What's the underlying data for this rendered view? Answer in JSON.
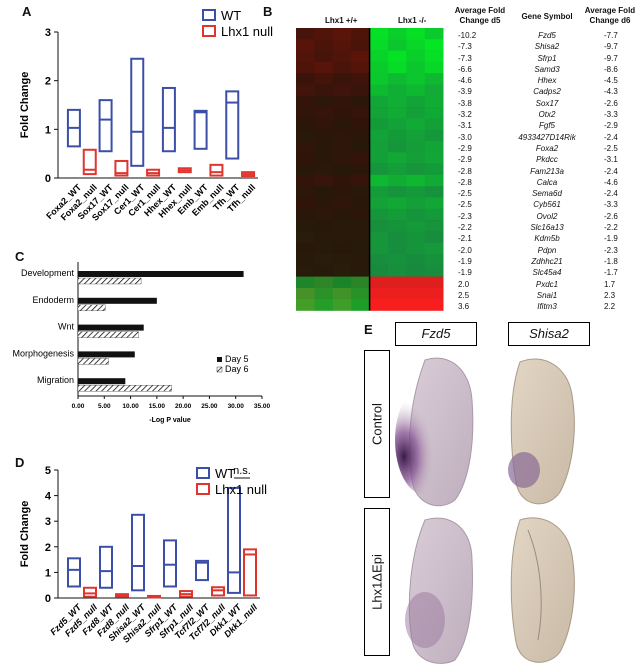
{
  "panels": {
    "a": "A",
    "b": "B",
    "c": "C",
    "d": "D",
    "e": "E"
  },
  "colors": {
    "wt": "#3b4fa8",
    "null": "#e0342f",
    "black": "#111111"
  },
  "panelA": {
    "chart_data": {
      "type": "box",
      "ylabel": "Fold Change",
      "ylim": [
        0,
        3
      ],
      "yticks": [
        "0",
        "1",
        "2",
        "3"
      ],
      "legend": [
        "WT",
        "Lhx1 null"
      ],
      "categories": [
        "Foxa2_WT",
        "Foxa2_null",
        "Sox17_WT",
        "Sox17_null",
        "Cer1_WT",
        "Cer1_null",
        "Hhex_WT",
        "Hhex_null",
        "Emb_WT",
        "Emb_null",
        "Tfh_WT",
        "Tfh_null"
      ],
      "boxes": [
        {
          "name": "Foxa2_WT",
          "group": "WT",
          "min": 0.65,
          "max": 1.4,
          "median": 1.03
        },
        {
          "name": "Foxa2_null",
          "group": "null",
          "min": 0.08,
          "max": 0.58,
          "median": 0.17
        },
        {
          "name": "Sox17_WT",
          "group": "WT",
          "min": 0.55,
          "max": 1.6,
          "median": 1.2
        },
        {
          "name": "Sox17_null",
          "group": "null",
          "min": 0.05,
          "max": 0.35,
          "median": 0.1
        },
        {
          "name": "Cer1_WT",
          "group": "WT",
          "min": 0.25,
          "max": 2.45,
          "median": 0.95
        },
        {
          "name": "Cer1_null",
          "group": "null",
          "min": 0.05,
          "max": 0.17,
          "median": 0.1
        },
        {
          "name": "Hhex_WT",
          "group": "WT",
          "min": 0.55,
          "max": 1.85,
          "median": 1.03
        },
        {
          "name": "Hhex_null",
          "group": "null",
          "min": 0.12,
          "max": 0.2,
          "median": 0.16
        },
        {
          "name": "Emb_WT",
          "group": "WT",
          "min": 0.6,
          "max": 1.38,
          "median": 1.35
        },
        {
          "name": "Emb_null",
          "group": "null",
          "min": 0.05,
          "max": 0.27,
          "median": 0.12
        },
        {
          "name": "Tfh_WT",
          "group": "WT",
          "min": 0.4,
          "max": 1.78,
          "median": 1.55
        },
        {
          "name": "Tfh_null",
          "group": "null",
          "min": 0.04,
          "max": 0.12,
          "median": 0.08
        }
      ]
    }
  },
  "panelB": {
    "heatmap_header_a": "Lhx1 +/+",
    "heatmap_header_b": "Lhx1 -/-",
    "col_head_1": "Average Fold Change d5",
    "col_head_2": "Gene Symbol",
    "col_head_3": "Average Fold Change d6",
    "rows": [
      {
        "d5": "-10.2",
        "gene": "Fzd5",
        "d6": "-7.7"
      },
      {
        "d5": "-7.3",
        "gene": "Shisa2",
        "d6": "-9.7"
      },
      {
        "d5": "-7.3",
        "gene": "Sfrp1",
        "d6": "-9.7"
      },
      {
        "d5": "-6.6",
        "gene": "Samd3",
        "d6": "-8.6"
      },
      {
        "d5": "-4.6",
        "gene": "Hhex",
        "d6": "-4.5"
      },
      {
        "d5": "-3.9",
        "gene": "Cadps2",
        "d6": "-4.3"
      },
      {
        "d5": "-3.8",
        "gene": "Sox17",
        "d6": "-2.6"
      },
      {
        "d5": "-3.2",
        "gene": "Otx2",
        "d6": "-3.3"
      },
      {
        "d5": "-3.1",
        "gene": "Fgf5",
        "d6": "-2.9"
      },
      {
        "d5": "-3.0",
        "gene": "4933427D14Rik",
        "d6": "-2.4"
      },
      {
        "d5": "-2.9",
        "gene": "Foxa2",
        "d6": "-2.5"
      },
      {
        "d5": "-2.9",
        "gene": "Pkdcc",
        "d6": "-3.1"
      },
      {
        "d5": "-2.8",
        "gene": "Fam213a",
        "d6": "-2.4"
      },
      {
        "d5": "-2.8",
        "gene": "Calca",
        "d6": "-4.6"
      },
      {
        "d5": "-2.5",
        "gene": "Sema6d",
        "d6": "-2.4"
      },
      {
        "d5": "-2.5",
        "gene": "Cyb561",
        "d6": "-3.3"
      },
      {
        "d5": "-2.3",
        "gene": "Ovol2",
        "d6": "-2.6"
      },
      {
        "d5": "-2.2",
        "gene": "Slc16a13",
        "d6": "-2.2"
      },
      {
        "d5": "-2.1",
        "gene": "Kdm5b",
        "d6": "-1.9"
      },
      {
        "d5": "-2.0",
        "gene": "Pdpn",
        "d6": "-2.3"
      },
      {
        "d5": "-1.9",
        "gene": "Zdhhc21",
        "d6": "-1.8"
      },
      {
        "d5": "-1.9",
        "gene": "Slc45a4",
        "d6": "-1.7"
      },
      {
        "d5": "2.0",
        "gene": "Pxdc1",
        "d6": "1.7"
      },
      {
        "d5": "2.5",
        "gene": "Snai1",
        "d6": "2.3"
      },
      {
        "d5": "3.6",
        "gene": "Ifitm3",
        "d6": "2.2"
      }
    ]
  },
  "panelC": {
    "chart_data": {
      "type": "bar",
      "orientation": "horizontal",
      "categories": [
        "Development",
        "Endoderm",
        "Wnt",
        "Morphogenesis",
        "Migration"
      ],
      "series": [
        {
          "name": "Day 5",
          "values": [
            31.5,
            15.0,
            12.5,
            10.8,
            9.0
          ]
        },
        {
          "name": "Day 6",
          "values": [
            12.0,
            5.2,
            11.5,
            5.8,
            17.8
          ]
        }
      ],
      "xlabel": "-Log P value",
      "xlim": [
        0,
        35
      ],
      "xticks": [
        "0.00",
        "5.00",
        "10.00",
        "15.00",
        "20.00",
        "25.00",
        "30.00",
        "35.00"
      ],
      "legend": [
        "Day 5",
        "Day 6"
      ]
    }
  },
  "panelD": {
    "chart_data": {
      "type": "box",
      "ylabel": "Fold Change",
      "ylim": [
        0,
        5
      ],
      "yticks": [
        "0",
        "1",
        "2",
        "3",
        "4",
        "5"
      ],
      "legend": [
        "WT",
        "Lhx1 null"
      ],
      "annotation": "n.s.",
      "categories": [
        "Fzd5_WT",
        "Fzd5_null",
        "Fzd8_WT",
        "Fzd8_null",
        "Shisa2_WT",
        "Shisa2_null",
        "Sfrp1_WT",
        "Sfrp1_null",
        "Tcf7l2_WT",
        "Tcf7l2_null",
        "Dkk1_WT",
        "Dkk1_null"
      ],
      "boxes": [
        {
          "name": "Fzd5_WT",
          "group": "WT",
          "min": 0.45,
          "max": 1.55,
          "median": 1.1
        },
        {
          "name": "Fzd5_null",
          "group": "null",
          "min": 0.05,
          "max": 0.4,
          "median": 0.18
        },
        {
          "name": "Fzd8_WT",
          "group": "WT",
          "min": 0.4,
          "max": 2.0,
          "median": 1.05
        },
        {
          "name": "Fzd8_null",
          "group": "null",
          "min": 0.05,
          "max": 0.15,
          "median": 0.1
        },
        {
          "name": "Shisa2_WT",
          "group": "WT",
          "min": 0.3,
          "max": 3.25,
          "median": 1.25
        },
        {
          "name": "Shisa2_null",
          "group": "null",
          "min": 0.03,
          "max": 0.08,
          "median": 0.05
        },
        {
          "name": "Sfrp1_WT",
          "group": "WT",
          "min": 0.45,
          "max": 2.25,
          "median": 1.3
        },
        {
          "name": "Sfrp1_null",
          "group": "null",
          "min": 0.05,
          "max": 0.27,
          "median": 0.15
        },
        {
          "name": "Tcf7l2_WT",
          "group": "WT",
          "min": 0.7,
          "max": 1.45,
          "median": 1.38
        },
        {
          "name": "Tcf7l2_null",
          "group": "null",
          "min": 0.1,
          "max": 0.42,
          "median": 0.3
        },
        {
          "name": "Dkk1_WT",
          "group": "WT",
          "min": 0.2,
          "max": 4.3,
          "median": 1.0
        },
        {
          "name": "Dkk1_null",
          "group": "null",
          "min": 0.1,
          "max": 1.9,
          "median": 1.7
        }
      ]
    }
  },
  "panelE": {
    "col_1": "Fzd5",
    "col_2": "Shisa2",
    "row_1": "Control",
    "row_2": "Lhx1ΔEpi"
  }
}
